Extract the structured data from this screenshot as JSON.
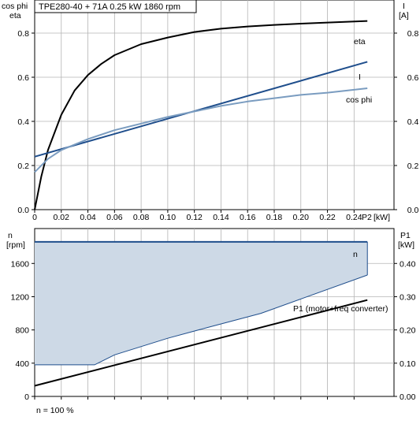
{
  "title": "TPE280-40 + 71A   0.25 kW   1860 rpm",
  "footer_note": "n = 100 %",
  "colors": {
    "eta": "#000000",
    "I": "#1f4e8c",
    "cos_phi": "#7a9cc0",
    "speed_fill": "#cdd9e6",
    "speed_line": "#1f4e8c",
    "p1": "#000000",
    "grid": "#b4b4b4"
  },
  "chart_data": [
    {
      "type": "line",
      "x_label": "P2",
      "x_unit": "[kW]",
      "x_ticks": [
        "0",
        "0.02",
        "0.04",
        "0.06",
        "0.08",
        "0.10",
        "0.12",
        "0.14",
        "0.16",
        "0.18",
        "0.20",
        "0.22",
        "0.24"
      ],
      "xlim": [
        0,
        0.27
      ],
      "left_axis_labels": [
        "cos phi",
        "eta"
      ],
      "left_ticks": [
        "0.0",
        "0.2",
        "0.4",
        "0.6",
        "0.8"
      ],
      "left_ylim": [
        0,
        0.95
      ],
      "right_axis_labels": [
        "I",
        "[A]"
      ],
      "right_ticks": [
        "0.0",
        "0.2",
        "0.4",
        "0.6",
        "0.8"
      ],
      "right_ylim": [
        0,
        0.95
      ],
      "grid": true,
      "series": [
        {
          "name": "eta",
          "axis": "left",
          "x": [
            0.0,
            0.005,
            0.01,
            0.02,
            0.03,
            0.04,
            0.05,
            0.06,
            0.08,
            0.1,
            0.12,
            0.14,
            0.16,
            0.18,
            0.2,
            0.22,
            0.25
          ],
          "y": [
            0.0,
            0.15,
            0.27,
            0.43,
            0.54,
            0.61,
            0.66,
            0.7,
            0.75,
            0.78,
            0.805,
            0.82,
            0.83,
            0.837,
            0.843,
            0.848,
            0.855
          ]
        },
        {
          "name": "I",
          "axis": "right",
          "x": [
            0.0,
            0.25
          ],
          "y": [
            0.24,
            0.67
          ]
        },
        {
          "name": "cos phi",
          "axis": "left",
          "x": [
            0.0,
            0.01,
            0.02,
            0.04,
            0.06,
            0.08,
            0.1,
            0.12,
            0.14,
            0.16,
            0.18,
            0.2,
            0.22,
            0.25
          ],
          "y": [
            0.17,
            0.23,
            0.27,
            0.32,
            0.36,
            0.39,
            0.42,
            0.445,
            0.47,
            0.49,
            0.505,
            0.52,
            0.53,
            0.55
          ]
        }
      ]
    },
    {
      "type": "area",
      "x_label": "",
      "xlim": [
        0,
        0.27
      ],
      "left_axis_labels": [
        "n",
        "[rpm]"
      ],
      "left_ticks": [
        "0",
        "400",
        "800",
        "1200",
        "1600"
      ],
      "left_ylim": [
        0,
        2020
      ],
      "right_axis_labels": [
        "P1",
        "[kW]"
      ],
      "right_ticks": [
        "0.00",
        "0.10",
        "0.20",
        "0.30",
        "0.40"
      ],
      "right_ylim": [
        0,
        0.505
      ],
      "grid": true,
      "series": [
        {
          "name": "n",
          "axis": "left",
          "x": [
            0.0,
            0.045,
            0.06,
            0.1,
            0.13,
            0.17,
            0.25
          ],
          "y_upper": [
            1860,
            1860,
            1860,
            1860,
            1860,
            1860,
            1860
          ],
          "y_lower": [
            380,
            380,
            500,
            700,
            830,
            1000,
            1460
          ]
        },
        {
          "name": "P1 (motor+freq converter)",
          "axis": "right",
          "x": [
            0.0,
            0.25
          ],
          "y": [
            0.032,
            0.29
          ]
        }
      ]
    }
  ]
}
